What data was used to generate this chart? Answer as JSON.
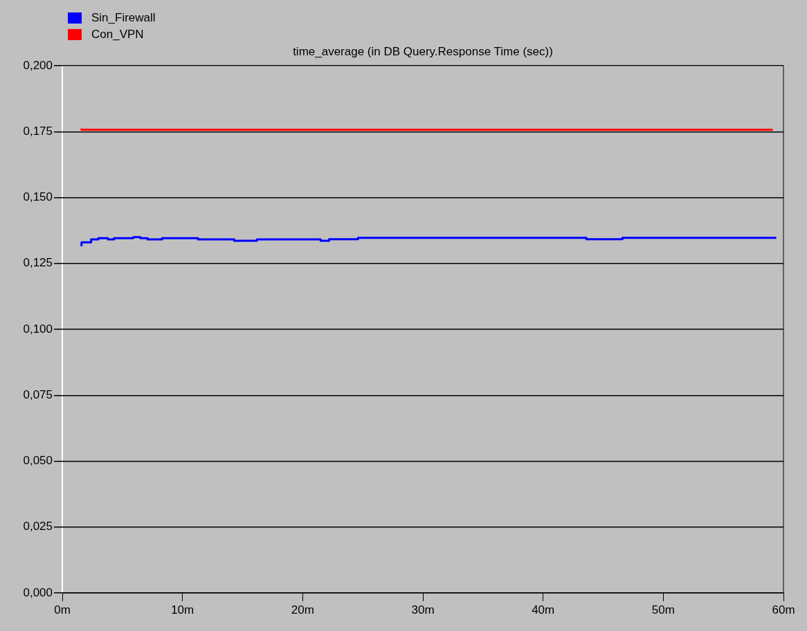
{
  "chart_data": {
    "type": "step",
    "title": "time_average (in DB Query.Response Time (sec))",
    "xlim": [
      0,
      60
    ],
    "xticks": [
      {
        "value": 0,
        "label": "0m"
      },
      {
        "value": 10,
        "label": "10m"
      },
      {
        "value": 20,
        "label": "20m"
      },
      {
        "value": 30,
        "label": "30m"
      },
      {
        "value": 40,
        "label": "40m"
      },
      {
        "value": 50,
        "label": "50m"
      },
      {
        "value": 60,
        "label": "60m"
      }
    ],
    "ylim": [
      0,
      0.2
    ],
    "yticks": [
      {
        "value": 0,
        "label": "0,000"
      },
      {
        "value": 0.025,
        "label": "0,025"
      },
      {
        "value": 0.05,
        "label": "0,050"
      },
      {
        "value": 0.075,
        "label": "0,075"
      },
      {
        "value": 0.1,
        "label": "0,100"
      },
      {
        "value": 0.125,
        "label": "0,125"
      },
      {
        "value": 0.15,
        "label": "0,150"
      },
      {
        "value": 0.175,
        "label": "0,175"
      },
      {
        "value": 0.2,
        "label": "0,200"
      }
    ],
    "grid": "y",
    "legend": "top left",
    "marker": "none",
    "line_style": "solid",
    "series": [
      {
        "name": "Sin_Firewall",
        "color": "#0000ff",
        "x": [
          1.6,
          2.4,
          3.0,
          3.8,
          4.3,
          5.9,
          6.5,
          7.1,
          8.3,
          11.3,
          14.3,
          16.2,
          21.5,
          22.2,
          24.6,
          43.6,
          46.6,
          52.6,
          59.4
        ],
        "values": [
          0.1315,
          0.133,
          0.1341,
          0.1346,
          0.1341,
          0.1346,
          0.135,
          0.1346,
          0.1341,
          0.1346,
          0.1341,
          0.1336,
          0.1341,
          0.1336,
          0.1342,
          0.1347,
          0.1342,
          0.1347,
          0.1347
        ]
      },
      {
        "name": "Con_VPN",
        "color": "#ff0000",
        "x": [
          1.6,
          3.9,
          59.1
        ],
        "values": [
          0.1762,
          0.1757,
          0.1757
        ]
      }
    ]
  }
}
